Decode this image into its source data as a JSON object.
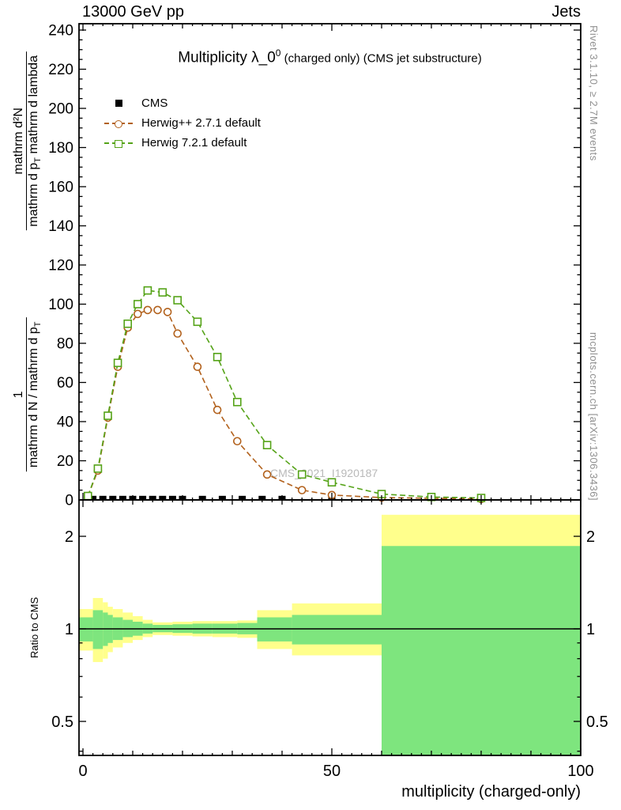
{
  "header": {
    "left": "13000 GeV pp",
    "right": "Jets"
  },
  "title": {
    "main": "Multiplicity λ_0",
    "sup": "0",
    "rest": " (charged only) (CMS jet substructure)"
  },
  "legend": [
    {
      "label": "CMS"
    },
    {
      "label": "Herwig++ 2.7.1 default"
    },
    {
      "label": "Herwig 7.2.1 default"
    }
  ],
  "watermark": "CMS_2021_I1920187",
  "side_notes": {
    "top_right": "Rivet 3.1.10, ≥ 2.7M events",
    "bottom_right": "mcplots.cern.ch [arXiv:1306.3436]"
  },
  "axis": {
    "xlabel": "multiplicity (charged-only)",
    "ratio_ylabel": "Ratio to CMS",
    "ylabel": {
      "frac1_num": "1",
      "frac1_den_a": "mathrm d N / mathrm d p",
      "frac1_den_sub": "T",
      "frac2_num": "mathrm d²N",
      "frac2_den_a": "mathrm d p",
      "frac2_den_sub": "T",
      "frac2_den_b": " mathrm d lambda"
    }
  },
  "colors": {
    "cms": "#000000",
    "herwigpp": "#b2611c",
    "herwig7": "#55a318",
    "band_yellow": "#ffff8c",
    "band_green": "#7ee57e",
    "frame": "#000000",
    "note_gray": "#909090",
    "watermark_gray": "#b9b9b9"
  },
  "chart_data": {
    "type": "line",
    "title": "Multiplicity λ_0^0 (charged only) (CMS jet substructure)",
    "x_axis": {
      "label": "multiplicity (charged-only)",
      "range": [
        0,
        100
      ],
      "major_ticks": [
        0,
        50,
        100
      ]
    },
    "main_panel": {
      "y_range": [
        0,
        243
      ],
      "y_ticks": [
        0,
        20,
        40,
        60,
        80,
        100,
        120,
        140,
        160,
        180,
        200,
        220,
        240
      ],
      "series": [
        {
          "name": "CMS",
          "marker": "filled_square",
          "line": "none",
          "color_key": "cms",
          "x": [
            2,
            4,
            6,
            8,
            10,
            12,
            14,
            16,
            18,
            20,
            24,
            28,
            32,
            36,
            40,
            50,
            80
          ],
          "y": [
            1.2,
            1.2,
            1.2,
            1.2,
            1.2,
            1.2,
            1.2,
            1.2,
            1.2,
            1.2,
            1.2,
            1.2,
            1.2,
            1.2,
            1.2,
            1.2,
            1.2
          ]
        },
        {
          "name": "Herwig++ 2.7.1 default",
          "marker": "open_circle",
          "line": "dashed",
          "color_key": "herwigpp",
          "x": [
            1,
            3,
            5,
            7,
            9,
            11,
            13,
            15,
            17,
            19,
            23,
            27,
            31,
            37,
            44,
            50,
            60,
            80
          ],
          "y": [
            2,
            15,
            42,
            68,
            88,
            95,
            97,
            97,
            96,
            85,
            68,
            46,
            30,
            13,
            5,
            2.5,
            1.2,
            0.5
          ]
        },
        {
          "name": "Herwig 7.2.1 default",
          "marker": "open_square",
          "line": "dashed",
          "color_key": "herwig7",
          "x": [
            1,
            3,
            5,
            7,
            9,
            11,
            13,
            16,
            19,
            23,
            27,
            31,
            37,
            44,
            50,
            60,
            70,
            80
          ],
          "y": [
            2,
            16,
            43,
            70,
            90,
            100,
            107,
            106,
            102,
            91,
            73,
            50,
            28,
            13,
            9,
            3,
            1.5,
            1
          ]
        }
      ]
    },
    "ratio_panel": {
      "scale": "log",
      "y_range": [
        0.37,
        2.62
      ],
      "y_ticks": [
        0.5,
        1,
        2
      ],
      "y_minor_ticks": [
        0.4,
        0.6,
        0.7,
        0.8,
        0.9
      ],
      "reference_line": 1,
      "bands": {
        "yellow": [
          [
            0,
            2,
            0.85,
            1.16
          ],
          [
            2,
            4,
            0.78,
            1.26
          ],
          [
            4,
            5,
            0.8,
            1.22
          ],
          [
            5,
            6,
            0.84,
            1.18
          ],
          [
            6,
            8,
            0.87,
            1.16
          ],
          [
            8,
            10,
            0.9,
            1.13
          ],
          [
            10,
            12,
            0.92,
            1.1
          ],
          [
            12,
            14,
            0.94,
            1.07
          ],
          [
            14,
            18,
            0.955,
            1.05
          ],
          [
            18,
            22,
            0.95,
            1.055
          ],
          [
            22,
            26,
            0.945,
            1.06
          ],
          [
            26,
            31,
            0.94,
            1.06
          ],
          [
            31,
            35,
            0.935,
            1.065
          ],
          [
            35,
            42,
            0.86,
            1.15
          ],
          [
            42,
            60,
            0.82,
            1.21
          ],
          [
            60,
            100,
            0.37,
            2.35
          ]
        ],
        "green": [
          [
            0,
            2,
            0.91,
            1.09
          ],
          [
            2,
            4,
            0.86,
            1.15
          ],
          [
            4,
            5,
            0.88,
            1.13
          ],
          [
            5,
            6,
            0.9,
            1.11
          ],
          [
            6,
            8,
            0.92,
            1.09
          ],
          [
            8,
            10,
            0.94,
            1.07
          ],
          [
            10,
            12,
            0.95,
            1.055
          ],
          [
            12,
            14,
            0.965,
            1.04
          ],
          [
            14,
            18,
            0.975,
            1.03
          ],
          [
            18,
            22,
            0.97,
            1.035
          ],
          [
            22,
            26,
            0.965,
            1.04
          ],
          [
            26,
            31,
            0.965,
            1.04
          ],
          [
            31,
            35,
            0.96,
            1.045
          ],
          [
            35,
            42,
            0.91,
            1.09
          ],
          [
            42,
            60,
            0.89,
            1.11
          ],
          [
            60,
            100,
            0.37,
            1.86
          ]
        ]
      }
    }
  }
}
